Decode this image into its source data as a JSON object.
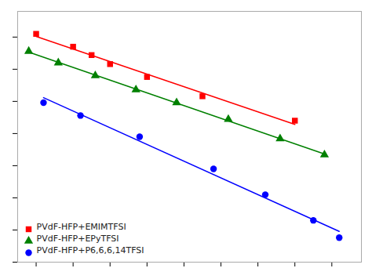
{
  "chart_data": {
    "type": "scatter",
    "series": [
      {
        "name": "PVdF-HFP+EMIMTFSI",
        "color": "red",
        "marker": "square",
        "x": [
          2.9,
          3.0,
          3.05,
          3.1,
          3.2,
          3.35,
          3.6
        ],
        "values": [
          -2.45,
          -2.65,
          -2.78,
          -2.92,
          -3.12,
          -3.42,
          -3.8
        ]
      },
      {
        "name": "PVdF-HFP+EPyTFSI",
        "color": "green",
        "marker": "triangle",
        "x": [
          2.88,
          2.96,
          3.06,
          3.17,
          3.28,
          3.42,
          3.56,
          3.68
        ],
        "values": [
          -2.72,
          -2.9,
          -3.1,
          -3.32,
          -3.52,
          -3.78,
          -4.08,
          -4.33
        ]
      },
      {
        "name": "PVdF-HFP+P6,6,6,14TFSI",
        "color": "blue",
        "marker": "circle",
        "x": [
          2.92,
          3.02,
          3.18,
          3.38,
          3.52,
          3.65,
          3.72
        ],
        "values": [
          -3.52,
          -3.72,
          -4.05,
          -4.55,
          -4.95,
          -5.35,
          -5.62
        ]
      }
    ],
    "xlim": [
      2.85,
      3.78
    ],
    "ylim": [
      -6.0,
      -2.1
    ],
    "xticks": [
      2.9,
      3.0,
      3.1,
      3.2,
      3.3,
      3.4,
      3.5,
      3.6,
      3.7
    ],
    "yticks": [
      -6.0,
      -5.5,
      -5.0,
      -4.5,
      -4.0,
      -3.5,
      -3.0,
      -2.5
    ],
    "tick_labels": false,
    "grid": false,
    "legend": "lower left"
  }
}
